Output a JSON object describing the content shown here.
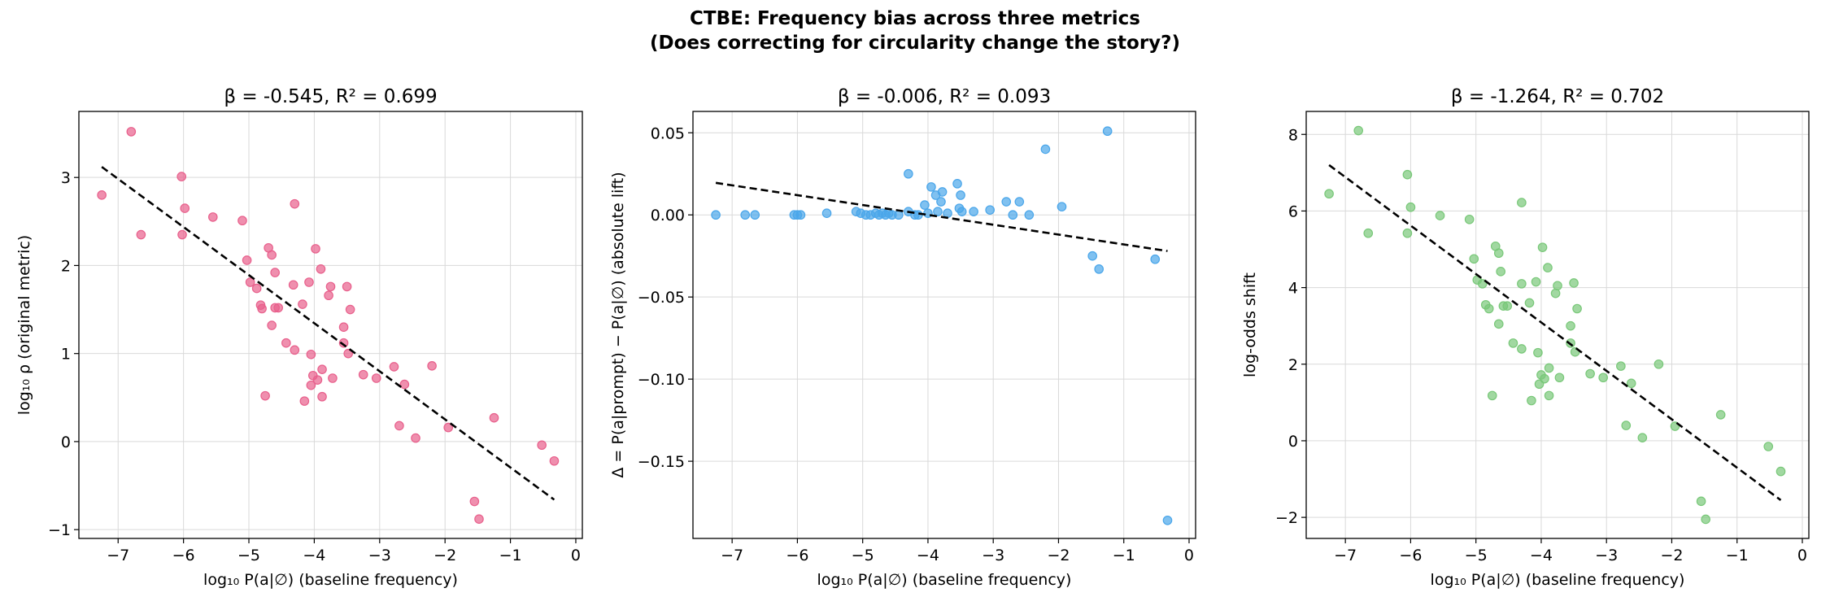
{
  "figure": {
    "title_line1": "CTBE: Frequency bias across three metrics",
    "title_line2": "(Does correcting for circularity change the story?)"
  },
  "chart_data": [
    {
      "type": "scatter",
      "title": "β = -0.545, R² = 0.699",
      "xlabel": "log₁₀ P(a|∅) (baseline frequency)",
      "ylabel": "log₁₀ ρ (original metric)",
      "xlim": [
        -7.6,
        0.1
      ],
      "ylim": [
        -1.1,
        3.75
      ],
      "xticks": [
        -7,
        -6,
        -5,
        -4,
        -3,
        -2,
        -1,
        0
      ],
      "xtick_labels": [
        "−7",
        "−6",
        "−5",
        "−4",
        "−3",
        "−2",
        "−1",
        "0"
      ],
      "yticks": [
        -1,
        0,
        1,
        2,
        3
      ],
      "ytick_labels": [
        "−1",
        "0",
        "1",
        "2",
        "3"
      ],
      "grid": true,
      "point_color": "#e8608c",
      "points": [
        [
          -7.25,
          2.8
        ],
        [
          -6.8,
          3.52
        ],
        [
          -6.65,
          2.35
        ],
        [
          -6.03,
          3.01
        ],
        [
          -5.98,
          2.65
        ],
        [
          -6.02,
          2.35
        ],
        [
          -5.55,
          2.55
        ],
        [
          -5.1,
          2.51
        ],
        [
          -5.03,
          2.06
        ],
        [
          -4.98,
          1.81
        ],
        [
          -4.88,
          1.74
        ],
        [
          -4.82,
          1.55
        ],
        [
          -4.8,
          1.51
        ],
        [
          -4.75,
          0.52
        ],
        [
          -4.7,
          2.2
        ],
        [
          -4.65,
          2.12
        ],
        [
          -4.6,
          1.92
        ],
        [
          -4.65,
          1.32
        ],
        [
          -4.6,
          1.52
        ],
        [
          -4.55,
          1.52
        ],
        [
          -4.43,
          1.12
        ],
        [
          -4.3,
          2.7
        ],
        [
          -4.3,
          1.04
        ],
        [
          -4.32,
          1.78
        ],
        [
          -4.18,
          1.56
        ],
        [
          -4.15,
          0.46
        ],
        [
          -4.08,
          1.81
        ],
        [
          -4.05,
          0.99
        ],
        [
          -4.05,
          0.64
        ],
        [
          -4.02,
          0.75
        ],
        [
          -3.98,
          2.19
        ],
        [
          -3.95,
          0.7
        ],
        [
          -3.9,
          1.96
        ],
        [
          -3.88,
          0.82
        ],
        [
          -3.88,
          0.51
        ],
        [
          -3.78,
          1.66
        ],
        [
          -3.75,
          1.76
        ],
        [
          -3.72,
          0.72
        ],
        [
          -3.55,
          1.3
        ],
        [
          -3.55,
          1.12
        ],
        [
          -3.48,
          1.0
        ],
        [
          -3.5,
          1.76
        ],
        [
          -3.45,
          1.5
        ],
        [
          -3.25,
          0.76
        ],
        [
          -3.05,
          0.72
        ],
        [
          -2.78,
          0.85
        ],
        [
          -2.7,
          0.18
        ],
        [
          -2.62,
          0.65
        ],
        [
          -2.45,
          0.04
        ],
        [
          -2.2,
          0.86
        ],
        [
          -1.95,
          0.16
        ],
        [
          -1.55,
          -0.68
        ],
        [
          -1.48,
          -0.88
        ],
        [
          -1.25,
          0.27
        ],
        [
          -0.52,
          -0.04
        ],
        [
          -0.33,
          -0.22
        ]
      ],
      "fit_line": [
        [
          -7.25,
          3.12
        ],
        [
          -0.33,
          -0.66
        ]
      ]
    },
    {
      "type": "scatter",
      "title": "β = -0.006, R² = 0.093",
      "xlabel": "log₁₀ P(a|∅) (baseline frequency)",
      "ylabel": "Δ = P(a|prompt) − P(a|∅) (absolute lift)",
      "xlim": [
        -7.6,
        0.1
      ],
      "ylim": [
        -0.197,
        0.063
      ],
      "xticks": [
        -7,
        -6,
        -5,
        -4,
        -3,
        -2,
        -1,
        0
      ],
      "xtick_labels": [
        "−7",
        "−6",
        "−5",
        "−4",
        "−3",
        "−2",
        "−1",
        "0"
      ],
      "yticks": [
        0.05,
        0.0,
        -0.05,
        -0.1,
        -0.15
      ],
      "ytick_labels": [
        "0.05",
        "0.00",
        "−0.05",
        "−0.10",
        "−0.15"
      ],
      "grid": true,
      "point_color": "#4aa6ea",
      "points": [
        [
          -7.25,
          0.0
        ],
        [
          -6.8,
          0.0
        ],
        [
          -6.65,
          0.0
        ],
        [
          -6.05,
          0.0
        ],
        [
          -6.0,
          0.0
        ],
        [
          -5.95,
          0.0
        ],
        [
          -5.55,
          0.001
        ],
        [
          -5.1,
          0.002
        ],
        [
          -5.03,
          0.001
        ],
        [
          -4.95,
          0.0
        ],
        [
          -4.88,
          0.0
        ],
        [
          -4.8,
          0.001
        ],
        [
          -4.75,
          0.0
        ],
        [
          -4.7,
          0.001
        ],
        [
          -4.65,
          0.0
        ],
        [
          -4.6,
          0.001
        ],
        [
          -4.55,
          0.0
        ],
        [
          -4.45,
          0.0
        ],
        [
          -4.3,
          0.025
        ],
        [
          -4.3,
          0.002
        ],
        [
          -4.2,
          0.0
        ],
        [
          -4.15,
          0.0
        ],
        [
          -4.05,
          0.006
        ],
        [
          -4.0,
          0.001
        ],
        [
          -3.95,
          0.017
        ],
        [
          -3.88,
          0.012
        ],
        [
          -3.85,
          0.002
        ],
        [
          -3.8,
          0.008
        ],
        [
          -3.78,
          0.014
        ],
        [
          -3.7,
          0.001
        ],
        [
          -3.55,
          0.019
        ],
        [
          -3.52,
          0.004
        ],
        [
          -3.5,
          0.012
        ],
        [
          -3.48,
          0.002
        ],
        [
          -3.3,
          0.002
        ],
        [
          -3.05,
          0.003
        ],
        [
          -2.8,
          0.008
        ],
        [
          -2.7,
          0.0
        ],
        [
          -2.6,
          0.008
        ],
        [
          -2.45,
          0.0
        ],
        [
          -2.2,
          0.04
        ],
        [
          -1.95,
          0.005
        ],
        [
          -1.48,
          -0.025
        ],
        [
          -1.38,
          -0.033
        ],
        [
          -1.25,
          0.051
        ],
        [
          -0.52,
          -0.027
        ],
        [
          -0.33,
          -0.186
        ]
      ],
      "fit_line": [
        [
          -7.25,
          0.0195
        ],
        [
          -0.33,
          -0.022
        ]
      ]
    },
    {
      "type": "scatter",
      "title": "β = -1.264, R² = 0.702",
      "xlabel": "log₁₀ P(a|∅) (baseline frequency)",
      "ylabel": "log-odds shift",
      "xlim": [
        -7.6,
        0.1
      ],
      "ylim": [
        -2.55,
        8.6
      ],
      "xticks": [
        -7,
        -6,
        -5,
        -4,
        -3,
        -2,
        -1,
        0
      ],
      "xtick_labels": [
        "−7",
        "−6",
        "−5",
        "−4",
        "−3",
        "−2",
        "−1",
        "0"
      ],
      "yticks": [
        -2,
        0,
        2,
        4,
        6,
        8
      ],
      "ytick_labels": [
        "−2",
        "0",
        "2",
        "4",
        "6",
        "8"
      ],
      "grid": true,
      "point_color": "#79c879",
      "points": [
        [
          -7.25,
          6.45
        ],
        [
          -6.8,
          8.1
        ],
        [
          -6.65,
          5.42
        ],
        [
          -6.05,
          6.95
        ],
        [
          -6.0,
          6.1
        ],
        [
          -6.05,
          5.42
        ],
        [
          -5.55,
          5.88
        ],
        [
          -5.1,
          5.78
        ],
        [
          -5.03,
          4.75
        ],
        [
          -4.98,
          4.2
        ],
        [
          -4.9,
          4.1
        ],
        [
          -4.85,
          3.55
        ],
        [
          -4.8,
          3.45
        ],
        [
          -4.75,
          1.18
        ],
        [
          -4.7,
          5.08
        ],
        [
          -4.65,
          4.9
        ],
        [
          -4.62,
          4.42
        ],
        [
          -4.65,
          3.05
        ],
        [
          -4.58,
          3.52
        ],
        [
          -4.52,
          3.52
        ],
        [
          -4.43,
          2.55
        ],
        [
          -4.3,
          6.22
        ],
        [
          -4.3,
          2.4
        ],
        [
          -4.3,
          4.1
        ],
        [
          -4.18,
          3.6
        ],
        [
          -4.15,
          1.05
        ],
        [
          -4.08,
          4.15
        ],
        [
          -4.05,
          2.3
        ],
        [
          -4.03,
          1.48
        ],
        [
          -4.0,
          1.72
        ],
        [
          -3.98,
          5.05
        ],
        [
          -3.95,
          1.62
        ],
        [
          -3.9,
          4.52
        ],
        [
          -3.88,
          1.9
        ],
        [
          -3.88,
          1.18
        ],
        [
          -3.78,
          3.85
        ],
        [
          -3.75,
          4.05
        ],
        [
          -3.72,
          1.65
        ],
        [
          -3.55,
          3.0
        ],
        [
          -3.55,
          2.55
        ],
        [
          -3.48,
          2.32
        ],
        [
          -3.5,
          4.12
        ],
        [
          -3.45,
          3.45
        ],
        [
          -3.25,
          1.75
        ],
        [
          -3.05,
          1.65
        ],
        [
          -2.78,
          1.95
        ],
        [
          -2.7,
          0.4
        ],
        [
          -2.62,
          1.5
        ],
        [
          -2.45,
          0.08
        ],
        [
          -2.2,
          2.0
        ],
        [
          -1.95,
          0.38
        ],
        [
          -1.55,
          -1.58
        ],
        [
          -1.48,
          -2.05
        ],
        [
          -1.25,
          0.68
        ],
        [
          -0.52,
          -0.15
        ],
        [
          -0.33,
          -0.8
        ]
      ],
      "fit_line": [
        [
          -7.25,
          7.2
        ],
        [
          -0.33,
          -1.55
        ]
      ]
    }
  ]
}
